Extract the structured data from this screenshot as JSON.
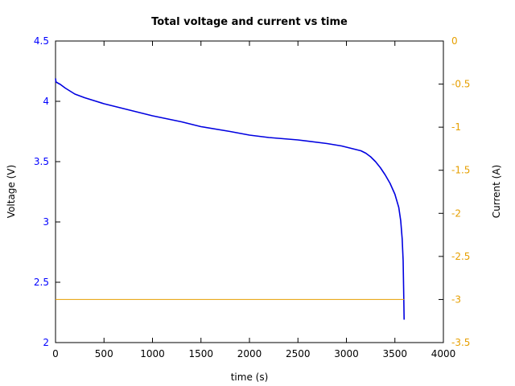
{
  "chart_data": {
    "type": "line",
    "title": "Total voltage and current vs time",
    "xlabel": "time (s)",
    "ylabel": "Voltage (V)",
    "y2label": "Current (A)",
    "xlim": [
      0,
      4000
    ],
    "ylim": [
      2,
      4.5
    ],
    "y2lim": [
      -3.5,
      0
    ],
    "xticks": [
      "0",
      "500",
      "1000",
      "1500",
      "2000",
      "2500",
      "3000",
      "3500",
      "4000"
    ],
    "yticks": [
      "2",
      "2.5",
      "3",
      "3.5",
      "4",
      "4.5"
    ],
    "y2ticks": [
      "-3.5",
      "-3",
      "-2.5",
      "-2",
      "-1.5",
      "-1",
      "-0.5",
      "0"
    ],
    "grid": false,
    "colors": {
      "voltage": "#0000e0",
      "current": "#e69f00",
      "left_axis_text": "#0000ff",
      "right_axis_text": "#e69f00"
    },
    "series": [
      {
        "axis": "left",
        "x": [
          0,
          5,
          50,
          100,
          200,
          300,
          500,
          800,
          1000,
          1300,
          1500,
          1800,
          2000,
          2200,
          2500,
          2800,
          2950,
          3050,
          3150,
          3200,
          3250,
          3300,
          3350,
          3400,
          3450,
          3500,
          3540,
          3560,
          3575,
          3585,
          3590,
          3595
        ],
        "y": [
          4.19,
          4.16,
          4.14,
          4.11,
          4.06,
          4.03,
          3.98,
          3.92,
          3.88,
          3.83,
          3.79,
          3.75,
          3.72,
          3.7,
          3.68,
          3.65,
          3.63,
          3.61,
          3.59,
          3.57,
          3.54,
          3.5,
          3.45,
          3.39,
          3.32,
          3.23,
          3.12,
          3.01,
          2.86,
          2.68,
          2.45,
          2.19
        ]
      },
      {
        "axis": "right",
        "x": [
          0,
          3595
        ],
        "y": [
          -3.0,
          -3.0
        ]
      }
    ]
  }
}
